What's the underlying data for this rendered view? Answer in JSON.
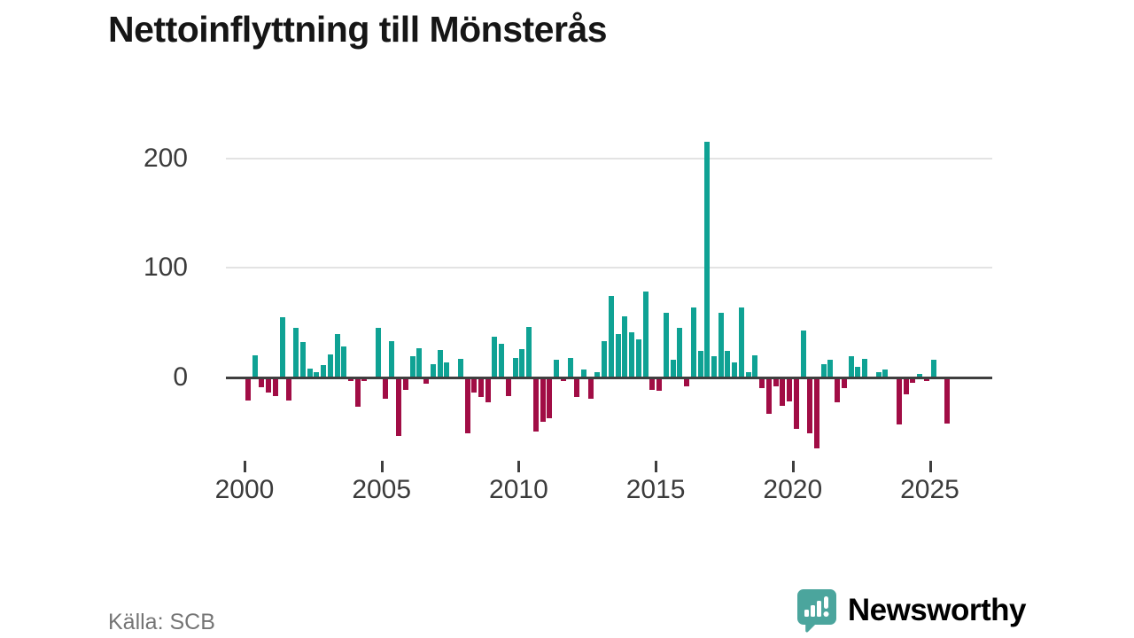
{
  "title": "Nettoinflyttning till Mönsterås",
  "source": "Källa: SCB",
  "branding": {
    "name": "Newsworthy",
    "logo_icon": "bar-chart-speech-bubble-icon"
  },
  "colors": {
    "positive": "#0fa294",
    "negative": "#a10d45",
    "axis": "#3f3f3f",
    "grid": "#e3e3e3",
    "tick_text": "#3b3b3b",
    "title_text": "#161616",
    "muted_text": "#757575",
    "brand": "#4ba59d"
  },
  "chart_data": {
    "type": "bar",
    "title": "Nettoinflyttning till Mönsterås",
    "xlabel": "",
    "ylabel": "",
    "x_unit": "quarter",
    "start": "2000-Q1",
    "end": "2025-Q3",
    "ylim": [
      -75,
      230
    ],
    "yticks": [
      0,
      100,
      200
    ],
    "xticks": [
      2000,
      2005,
      2010,
      2015,
      2020,
      2025
    ],
    "grid": "horizontal",
    "legend": "none",
    "series": [
      {
        "name": "Nettoinflyttning",
        "years": [
          {
            "year": 2000,
            "values": [
              -21,
              20,
              -9,
              -14
            ]
          },
          {
            "year": 2001,
            "values": [
              -17,
              55,
              -21,
              45
            ]
          },
          {
            "year": 2002,
            "values": [
              32,
              8,
              5,
              11
            ]
          },
          {
            "year": 2003,
            "values": [
              21,
              40,
              28,
              -3
            ]
          },
          {
            "year": 2004,
            "values": [
              -27,
              -3,
              -2,
              45
            ]
          },
          {
            "year": 2005,
            "values": [
              -19,
              33,
              -53,
              -11
            ]
          },
          {
            "year": 2006,
            "values": [
              19,
              27,
              -6,
              12
            ]
          },
          {
            "year": 2007,
            "values": [
              25,
              14,
              0,
              17
            ]
          },
          {
            "year": 2008,
            "values": [
              -51,
              -14,
              -18,
              -23
            ]
          },
          {
            "year": 2009,
            "values": [
              37,
              31,
              -17,
              18
            ]
          },
          {
            "year": 2010,
            "values": [
              26,
              46,
              -49,
              -40
            ]
          },
          {
            "year": 2011,
            "values": [
              -37,
              16,
              -3,
              18
            ]
          },
          {
            "year": 2012,
            "values": [
              -18,
              7,
              -19,
              5
            ]
          },
          {
            "year": 2013,
            "values": [
              33,
              74,
              40,
              56
            ]
          },
          {
            "year": 2014,
            "values": [
              41,
              35,
              78,
              -11
            ]
          },
          {
            "year": 2015,
            "values": [
              -12,
              59,
              16,
              45
            ]
          },
          {
            "year": 2016,
            "values": [
              -8,
              64,
              24,
              215
            ]
          },
          {
            "year": 2017,
            "values": [
              19,
              59,
              24,
              14
            ]
          },
          {
            "year": 2018,
            "values": [
              64,
              5,
              20,
              -10
            ]
          },
          {
            "year": 2019,
            "values": [
              -33,
              -8,
              -26,
              -22
            ]
          },
          {
            "year": 2020,
            "values": [
              -47,
              43,
              -51,
              -65
            ]
          },
          {
            "year": 2021,
            "values": [
              12,
              16,
              -23,
              -10
            ]
          },
          {
            "year": 2022,
            "values": [
              19,
              10,
              17,
              0
            ]
          },
          {
            "year": 2023,
            "values": [
              5,
              7,
              0,
              -43
            ]
          },
          {
            "year": 2024,
            "values": [
              -15,
              -5,
              3,
              -3
            ]
          },
          {
            "year": 2025,
            "values": [
              16,
              0,
              -42
            ]
          }
        ]
      }
    ]
  }
}
